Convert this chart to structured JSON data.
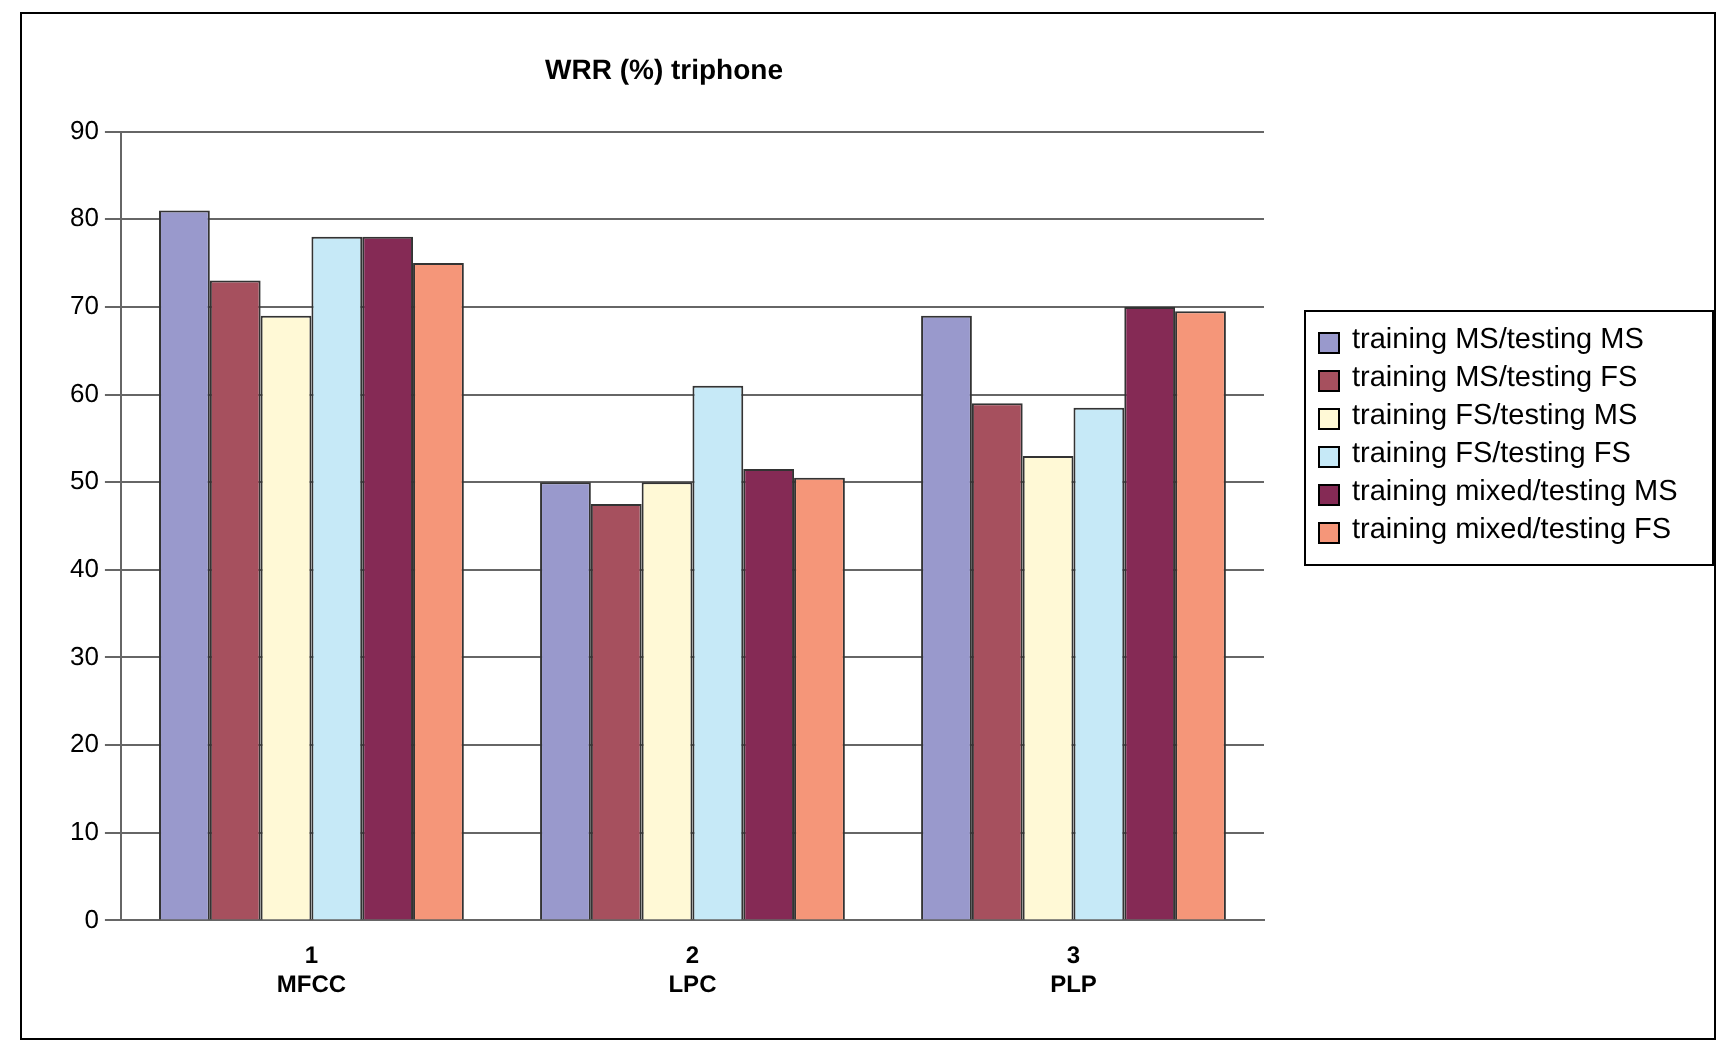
{
  "chart_data": {
    "type": "bar",
    "title": "WRR (%) triphone",
    "categories": [
      "1\nMFCC",
      "2\nLPC",
      "3\nPLP"
    ],
    "series": [
      {
        "name": "training MS/testing MS",
        "color": "#9999cc",
        "values": [
          81,
          50,
          69
        ]
      },
      {
        "name": "training MS/testing FS",
        "color": "#a6505e",
        "values": [
          73,
          47.5,
          59
        ]
      },
      {
        "name": "training FS/testing MS",
        "color": "#fff9d6",
        "values": [
          69,
          50,
          53
        ]
      },
      {
        "name": "training FS/testing FS",
        "color": "#c6e9f7",
        "values": [
          78,
          61,
          58.5
        ]
      },
      {
        "name": "training mixed/testing MS",
        "color": "#852a55",
        "values": [
          78,
          51.5,
          70
        ]
      },
      {
        "name": "training mixed/testing FS",
        "color": "#f59679",
        "values": [
          75,
          50.5,
          69.5
        ]
      }
    ],
    "ylim": [
      0,
      90
    ],
    "yticks": [
      0,
      10,
      20,
      30,
      40,
      50,
      60,
      70,
      80,
      90
    ],
    "grid": "y",
    "legend": "right"
  }
}
